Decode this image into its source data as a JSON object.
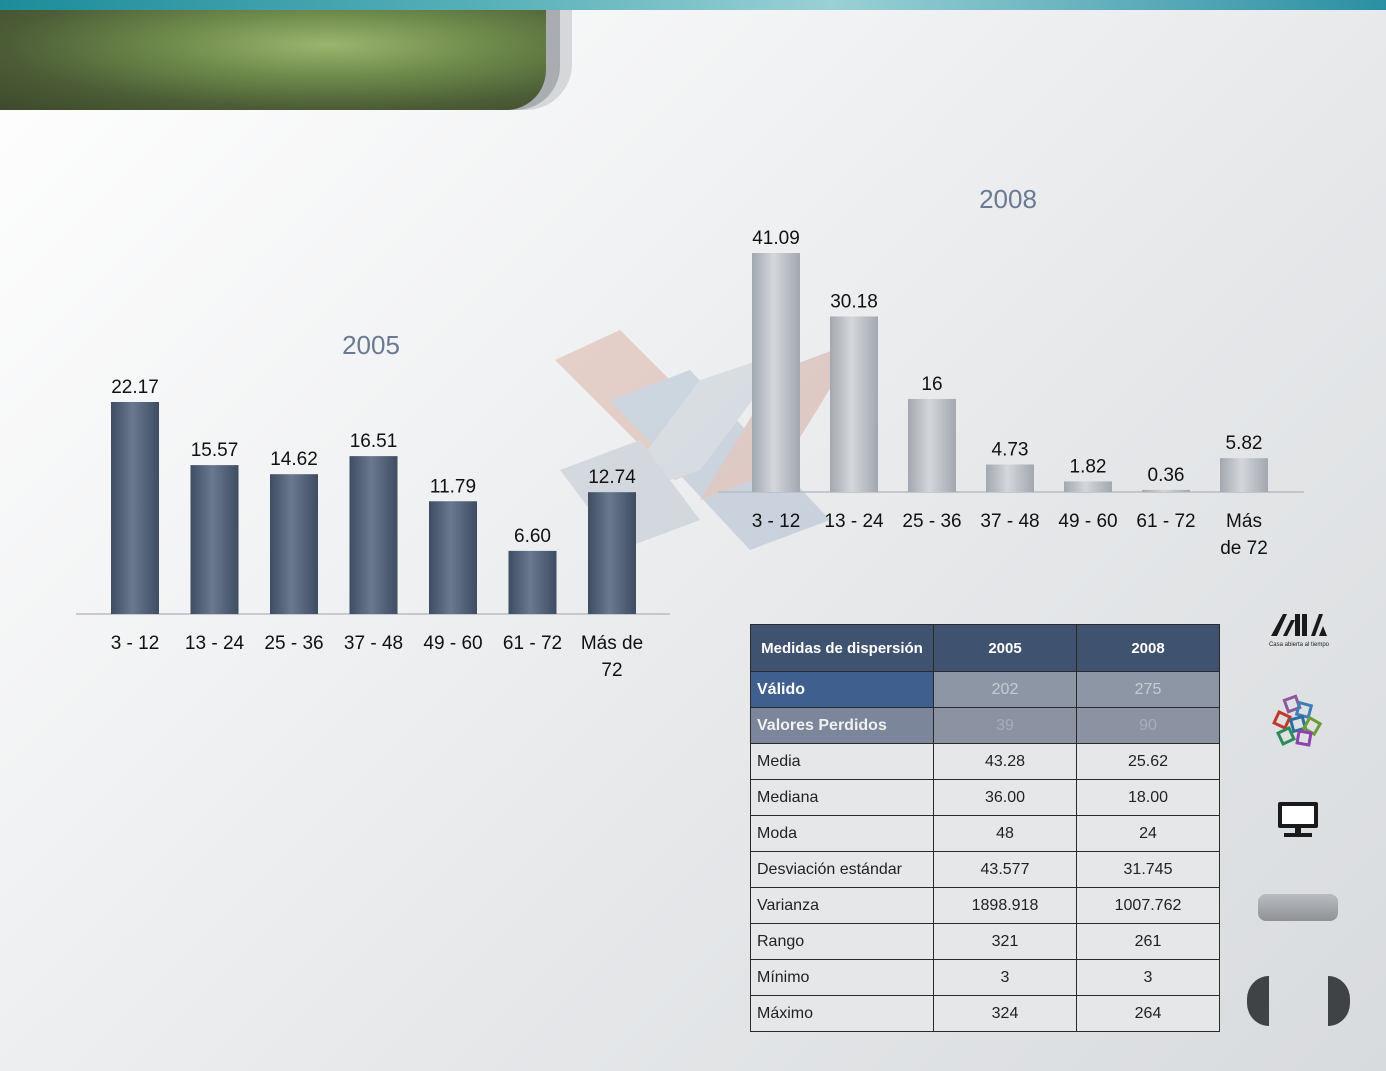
{
  "chart_data": [
    {
      "type": "bar",
      "title": "2005",
      "categories": [
        "3 - 12",
        "13 - 24",
        "25 - 36",
        "37 - 48",
        "49 - 60",
        "61 - 72",
        "Más de 72"
      ],
      "values": [
        22.17,
        15.57,
        14.62,
        16.51,
        11.79,
        6.6,
        12.74
      ],
      "value_labels": [
        "22.17",
        "15.57",
        "14.62",
        "16.51",
        "11.79",
        "6.60",
        "12.74"
      ],
      "ylim": [
        0,
        22.17
      ],
      "grid": false,
      "colors": {
        "bar": "#3f4d63",
        "bar_light": "#6a7890"
      }
    },
    {
      "type": "bar",
      "title": "2008",
      "categories": [
        "3 - 12",
        "13 - 24",
        "25 - 36",
        "37 - 48",
        "49 - 60",
        "61 - 72",
        "Más de 72"
      ],
      "values": [
        41.09,
        30.18,
        16,
        4.73,
        1.82,
        0.36,
        5.82
      ],
      "value_labels": [
        "41.09",
        "30.18",
        "16",
        "4.73",
        "1.82",
        "0.36",
        "5.82"
      ],
      "ylim": [
        0,
        41.09
      ],
      "grid": false,
      "colors": {
        "bar": "#a2a8b0",
        "bar_light": "#d4d7db"
      }
    }
  ],
  "table": {
    "headers": [
      "Medidas de dispersión",
      "2005",
      "2008"
    ],
    "rows": [
      {
        "label": "Válido",
        "v2005": "202",
        "v2008": "275",
        "style": "hl1"
      },
      {
        "label": "Valores Perdidos",
        "v2005": "39",
        "v2008": "90",
        "style": "hl2"
      },
      {
        "label": "Media",
        "v2005": "43.28",
        "v2008": "25.62",
        "style": "plain"
      },
      {
        "label": "Mediana",
        "v2005": "36.00",
        "v2008": "18.00",
        "style": "plain"
      },
      {
        "label": "Moda",
        "v2005": "48",
        "v2008": "24",
        "style": "plain"
      },
      {
        "label": "Desviación estándar",
        "v2005": "43.577",
        "v2008": "31.745",
        "style": "plain"
      },
      {
        "label": "Varianza",
        "v2005": "1898.918",
        "v2008": "1007.762",
        "style": "plain"
      },
      {
        "label": "Rango",
        "v2005": "321",
        "v2008": "261",
        "style": "plain"
      },
      {
        "label": "Mínimo",
        "v2005": "3",
        "v2008": "3",
        "style": "plain"
      },
      {
        "label": "Máximo",
        "v2005": "324",
        "v2008": "264",
        "style": "plain"
      }
    ]
  },
  "sidebar": {
    "logo_subtitle": "Casa abierta al tiempo",
    "icons": [
      "uam-logo-icon",
      "blocks-icon",
      "monitor-icon"
    ]
  },
  "colors": {
    "header_bg": "#3f5270",
    "accent_teal": "#1d8c9a",
    "tab_green": "#6e8a4b"
  }
}
